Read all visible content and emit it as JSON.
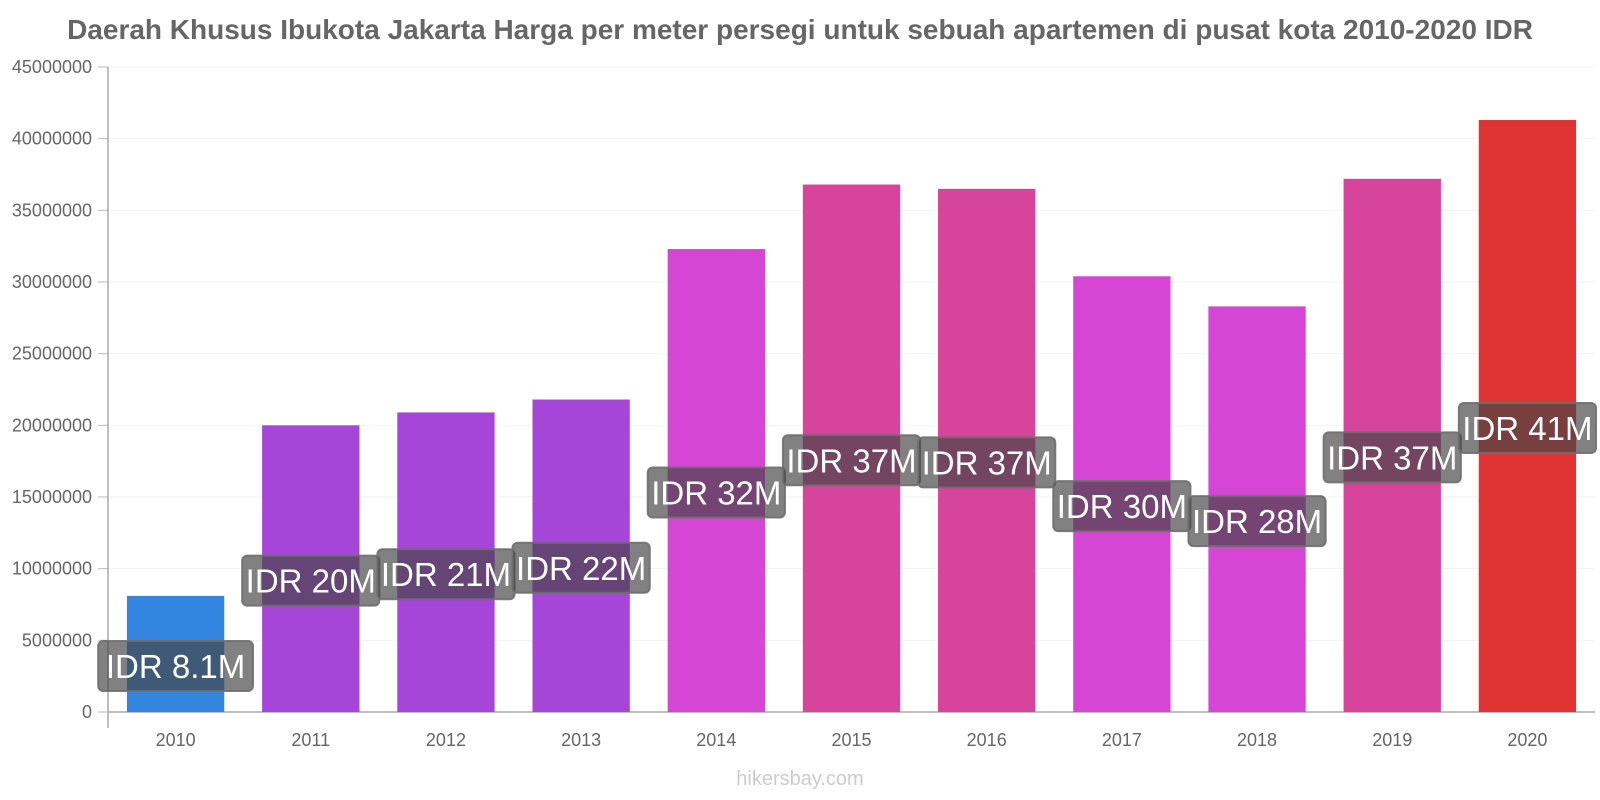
{
  "title": "Daerah Khusus Ibukota Jakarta Harga per meter persegi untuk sebuah apartemen di pusat kota 2010-2020 IDR",
  "watermark": "hikersbay.com",
  "chart_data": {
    "type": "bar",
    "title": "Daerah Khusus Ibukota Jakarta Harga per meter persegi untuk sebuah apartemen di pusat kota 2010-2020 IDR",
    "xlabel": "",
    "ylabel": "",
    "ylim": [
      0,
      45000000
    ],
    "grid": true,
    "yticks": [
      "0",
      "5000000",
      "10000000",
      "15000000",
      "20000000",
      "25000000",
      "30000000",
      "35000000",
      "40000000",
      "45000000"
    ],
    "categories": [
      "2010",
      "2011",
      "2012",
      "2013",
      "2014",
      "2015",
      "2016",
      "2017",
      "2018",
      "2019",
      "2020"
    ],
    "values": [
      8100000,
      20000000,
      20900000,
      21800000,
      32300000,
      36800000,
      36500000,
      30400000,
      28300000,
      37200000,
      41300000
    ],
    "data_labels": [
      "IDR 8.1M",
      "IDR 20M",
      "IDR 21M",
      "IDR 22M",
      "IDR 32M",
      "IDR 37M",
      "IDR 37M",
      "IDR 30M",
      "IDR 28M",
      "IDR 37M",
      "IDR 41M"
    ],
    "colors": [
      "#3385e0",
      "#a646d9",
      "#a646d9",
      "#a646d9",
      "#d646d4",
      "#d6449b",
      "#d6449b",
      "#d646d4",
      "#d646d4",
      "#d6449b",
      "#e03333"
    ]
  }
}
